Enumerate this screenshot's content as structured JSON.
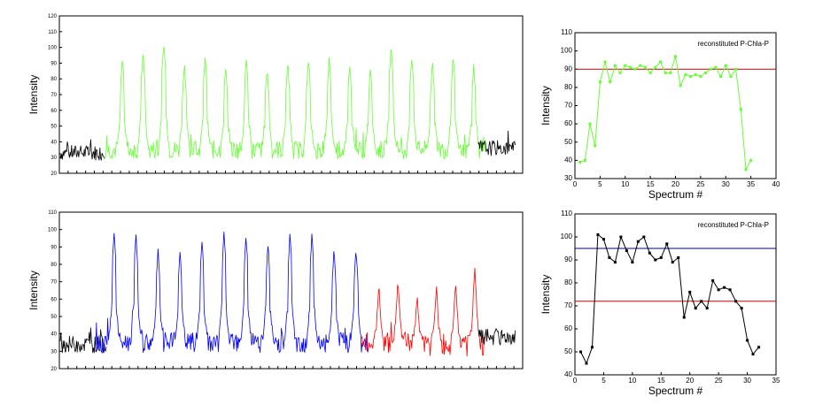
{
  "chart_data": [
    {
      "type": "line",
      "title": "",
      "xlabel": "",
      "ylabel": "Intensity",
      "ylim": [
        20,
        120
      ],
      "y_ticks": [
        "20",
        "30",
        "40",
        "50",
        "60",
        "70",
        "80",
        "90",
        "100",
        "110",
        "120"
      ],
      "series": [
        {
          "color": "#000000",
          "segment": "lead-in",
          "baseline": 33,
          "noise": 5
        },
        {
          "color": "#66ff33",
          "segment": "main",
          "baseline": 35,
          "noise": 6,
          "peak_values": [
            96,
            99,
            106,
            91,
            97,
            90,
            96,
            89,
            92,
            96,
            95,
            91,
            89,
            102,
            97,
            93,
            97,
            90
          ]
        },
        {
          "color": "#000000",
          "segment": "tail",
          "baseline": 36,
          "noise": 5
        }
      ]
    },
    {
      "type": "line",
      "title": "",
      "xlabel": "",
      "ylabel": "Intensity",
      "ylim": [
        20,
        110
      ],
      "y_ticks": [
        "20",
        "30",
        "40",
        "50",
        "60",
        "70",
        "80",
        "90",
        "100",
        "110"
      ],
      "series": [
        {
          "color": "#000000",
          "segment": "lead-in",
          "baseline": 34,
          "noise": 5
        },
        {
          "color": "#0000ff",
          "segment": "blue",
          "baseline": 35,
          "noise": 6,
          "peak_values": [
            101,
            100,
            91,
            90,
            96,
            100,
            99,
            94,
            100,
            100,
            90,
            91
          ]
        },
        {
          "color": "#ff0000",
          "segment": "red",
          "baseline": 34,
          "noise": 7,
          "peak_values": [
            70,
            72,
            65,
            70,
            72,
            81
          ]
        },
        {
          "color": "#000000",
          "segment": "tail",
          "baseline": 38,
          "noise": 5
        }
      ]
    },
    {
      "type": "line",
      "annotation": "reconstituted P-Chla-P",
      "xlabel": "Spectrum #",
      "ylabel": "Intensity",
      "xlim": [
        0,
        40
      ],
      "ylim": [
        30,
        110
      ],
      "x_ticks": [
        "0",
        "5",
        "10",
        "15",
        "20",
        "25",
        "30",
        "35",
        "40"
      ],
      "y_ticks": [
        "30",
        "40",
        "50",
        "60",
        "70",
        "80",
        "90",
        "100",
        "110"
      ],
      "reference_lines": [
        {
          "y": 90,
          "color": "#cc0000"
        }
      ],
      "series": [
        {
          "color": "#66ff33",
          "x": [
            1,
            2,
            3,
            4,
            5,
            6,
            7,
            8,
            9,
            10,
            11,
            12,
            13,
            14,
            15,
            16,
            17,
            18,
            19,
            20,
            21,
            22,
            23,
            24,
            25,
            26,
            27,
            28,
            29,
            30,
            31,
            32,
            33,
            34,
            35
          ],
          "y": [
            39,
            40,
            60,
            48,
            83,
            94,
            83,
            92,
            88,
            92,
            91,
            90,
            92,
            91,
            88,
            91,
            94,
            88,
            88,
            97,
            81,
            87,
            86,
            87,
            86,
            88,
            90,
            91,
            86,
            92,
            86,
            90,
            68,
            35,
            40
          ]
        }
      ]
    },
    {
      "type": "line",
      "annotation": "reconstituted P-Chla-P",
      "xlabel": "Spectrum #",
      "ylabel": "Intensity",
      "xlim": [
        0,
        35
      ],
      "ylim": [
        40,
        110
      ],
      "x_ticks": [
        "0",
        "5",
        "10",
        "15",
        "20",
        "25",
        "30",
        "35"
      ],
      "y_ticks": [
        "40",
        "50",
        "60",
        "70",
        "80",
        "90",
        "100",
        "110"
      ],
      "reference_lines": [
        {
          "y": 95,
          "color": "#000080"
        },
        {
          "y": 72,
          "color": "#cc0000"
        }
      ],
      "series": [
        {
          "color": "#000000",
          "x": [
            1,
            2,
            3,
            4,
            5,
            6,
            7,
            8,
            9,
            10,
            11,
            12,
            13,
            14,
            15,
            16,
            17,
            18,
            19,
            20,
            21,
            22,
            23,
            24,
            25,
            26,
            27,
            28,
            29,
            30,
            31,
            32
          ],
          "y": [
            50,
            45,
            52,
            101,
            99,
            91,
            89,
            100,
            94,
            89,
            98,
            100,
            93,
            90,
            91,
            97,
            89,
            91,
            65,
            76,
            69,
            72,
            69,
            81,
            77,
            78,
            77,
            72,
            69,
            55,
            49,
            52
          ]
        }
      ]
    }
  ]
}
